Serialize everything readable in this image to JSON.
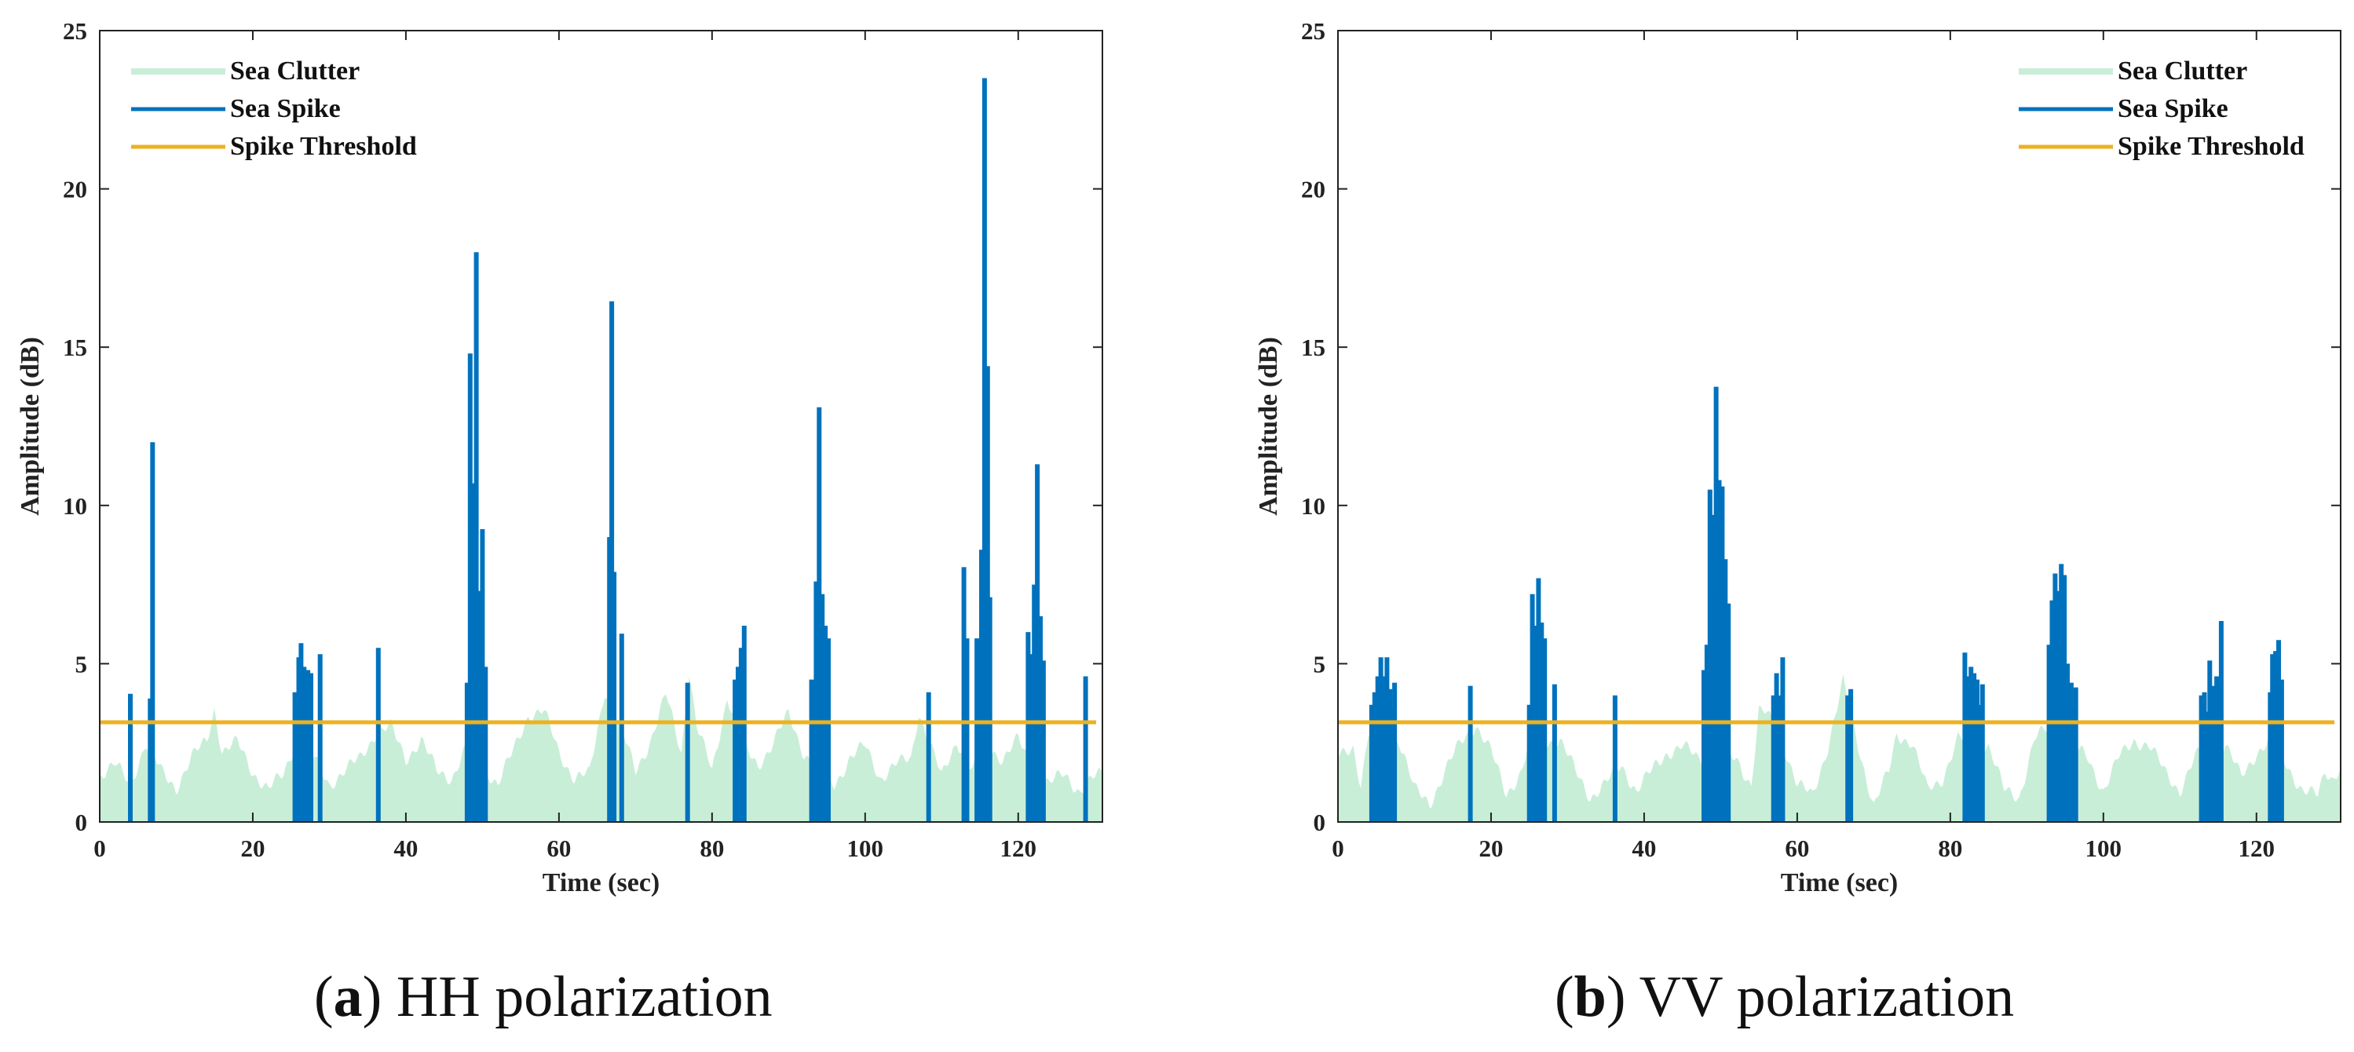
{
  "chart_data": [
    {
      "id": "panel-a",
      "type": "bar",
      "caption_letter": "a",
      "caption_text": "HH polarization",
      "xlabel": "Time (sec)",
      "ylabel": "Amplitude (dB)",
      "xlim": [
        0,
        131
      ],
      "ylim": [
        0,
        25
      ],
      "xticks": [
        0,
        20,
        40,
        60,
        80,
        100,
        120
      ],
      "yticks": [
        0,
        5,
        10,
        15,
        20,
        25
      ],
      "legend_position": "top-left",
      "legend": [
        {
          "name": "Sea Clutter",
          "color": "#c8eed8"
        },
        {
          "name": "Sea Spike",
          "color": "#0072bd"
        },
        {
          "name": "Spike Threshold",
          "color": "#edb120"
        }
      ],
      "threshold": 3.15,
      "clutter_profile": [
        [
          0,
          1.5
        ],
        [
          2,
          1.8
        ],
        [
          4,
          1.2
        ],
        [
          6,
          2.5
        ],
        [
          8,
          1.6
        ],
        [
          10,
          1.1
        ],
        [
          12,
          2.0
        ],
        [
          14,
          2.6
        ],
        [
          15,
          3.6
        ],
        [
          16,
          2.2
        ],
        [
          18,
          2.5
        ],
        [
          20,
          1.6
        ],
        [
          22,
          1.0
        ],
        [
          24,
          1.5
        ],
        [
          26,
          2.8
        ],
        [
          28,
          2.0
        ],
        [
          30,
          1.2
        ],
        [
          32,
          1.6
        ],
        [
          34,
          2.0
        ],
        [
          36,
          2.8
        ],
        [
          38,
          3.0
        ],
        [
          40,
          2.0
        ],
        [
          42,
          2.6
        ],
        [
          44,
          1.6
        ],
        [
          46,
          1.4
        ],
        [
          48,
          2.4
        ],
        [
          50,
          1.8
        ],
        [
          52,
          1.2
        ],
        [
          54,
          2.2
        ],
        [
          56,
          3.4
        ],
        [
          58,
          3.5
        ],
        [
          60,
          2.2
        ],
        [
          62,
          1.4
        ],
        [
          64,
          1.5
        ],
        [
          66,
          4.2
        ],
        [
          68,
          3.0
        ],
        [
          70,
          1.6
        ],
        [
          72,
          2.6
        ],
        [
          74,
          4.0
        ],
        [
          76,
          2.2
        ],
        [
          77,
          4.8
        ],
        [
          78,
          3.0
        ],
        [
          80,
          1.6
        ],
        [
          82,
          4.0
        ],
        [
          84,
          2.4
        ],
        [
          86,
          1.8
        ],
        [
          88,
          2.5
        ],
        [
          90,
          3.4
        ],
        [
          92,
          2.2
        ],
        [
          94,
          1.6
        ],
        [
          96,
          1.2
        ],
        [
          98,
          2.0
        ],
        [
          100,
          2.4
        ],
        [
          102,
          1.4
        ],
        [
          104,
          1.8
        ],
        [
          106,
          2.0
        ],
        [
          107,
          3.5
        ],
        [
          108,
          2.8
        ],
        [
          110,
          1.4
        ],
        [
          112,
          2.6
        ],
        [
          114,
          1.6
        ],
        [
          116,
          2.4
        ],
        [
          118,
          2.0
        ],
        [
          120,
          2.6
        ],
        [
          122,
          1.6
        ],
        [
          124,
          1.2
        ],
        [
          126,
          1.5
        ],
        [
          128,
          1.0
        ],
        [
          130,
          1.4
        ],
        [
          131,
          1.5
        ]
      ],
      "spikes": [
        [
          4.0,
          4.05
        ],
        [
          6.6,
          3.9
        ],
        [
          6.9,
          12.0
        ],
        [
          25.5,
          4.1
        ],
        [
          26.0,
          5.2
        ],
        [
          26.3,
          5.65
        ],
        [
          26.7,
          4.9
        ],
        [
          27.2,
          4.8
        ],
        [
          27.6,
          4.7
        ],
        [
          28.8,
          5.3
        ],
        [
          36.4,
          5.5
        ],
        [
          48.0,
          4.4
        ],
        [
          48.4,
          14.8
        ],
        [
          48.8,
          10.7
        ],
        [
          49.2,
          18.0
        ],
        [
          49.6,
          7.3
        ],
        [
          50.0,
          9.25
        ],
        [
          50.4,
          4.9
        ],
        [
          66.6,
          9.0
        ],
        [
          66.9,
          16.45
        ],
        [
          67.2,
          7.9
        ],
        [
          68.2,
          5.95
        ],
        [
          76.8,
          4.4
        ],
        [
          83.0,
          4.5
        ],
        [
          83.4,
          4.9
        ],
        [
          83.8,
          5.5
        ],
        [
          84.2,
          6.2
        ],
        [
          93.0,
          4.5
        ],
        [
          93.6,
          7.6
        ],
        [
          94.0,
          13.1
        ],
        [
          94.4,
          7.2
        ],
        [
          94.8,
          6.2
        ],
        [
          95.2,
          5.8
        ],
        [
          108.3,
          4.1
        ],
        [
          112.9,
          8.05
        ],
        [
          113.3,
          5.8
        ],
        [
          114.6,
          5.8
        ],
        [
          115.2,
          8.6
        ],
        [
          115.6,
          23.5
        ],
        [
          116.0,
          14.4
        ],
        [
          116.3,
          7.1
        ],
        [
          121.3,
          6.0
        ],
        [
          121.7,
          5.3
        ],
        [
          122.1,
          7.5
        ],
        [
          122.5,
          11.3
        ],
        [
          122.9,
          6.5
        ],
        [
          123.3,
          5.1
        ],
        [
          128.8,
          4.6
        ]
      ]
    },
    {
      "id": "panel-b",
      "type": "bar",
      "caption_letter": "b",
      "caption_text": "VV polarization",
      "xlabel": "Time (sec)",
      "ylabel": "Amplitude (dB)",
      "xlim": [
        0,
        131
      ],
      "ylim": [
        0,
        25
      ],
      "xticks": [
        0,
        20,
        40,
        60,
        80,
        100,
        120
      ],
      "yticks": [
        0,
        5,
        10,
        15,
        20,
        25
      ],
      "legend_position": "top-right",
      "legend": [
        {
          "name": "Sea Clutter",
          "color": "#c8eed8"
        },
        {
          "name": "Sea Spike",
          "color": "#0072bd"
        },
        {
          "name": "Spike Threshold",
          "color": "#edb120"
        }
      ],
      "threshold": 3.15,
      "clutter_profile": [
        [
          0,
          2.0
        ],
        [
          2,
          2.4
        ],
        [
          3,
          1.2
        ],
        [
          4,
          2.8
        ],
        [
          8,
          2.6
        ],
        [
          10,
          1.0
        ],
        [
          12,
          0.6
        ],
        [
          14,
          1.6
        ],
        [
          16,
          2.5
        ],
        [
          18,
          3.1
        ],
        [
          20,
          2.2
        ],
        [
          22,
          0.9
        ],
        [
          24,
          1.6
        ],
        [
          25,
          2.5
        ],
        [
          29,
          2.6
        ],
        [
          31,
          1.6
        ],
        [
          33,
          0.8
        ],
        [
          35,
          1.2
        ],
        [
          37,
          1.8
        ],
        [
          39,
          1.0
        ],
        [
          41,
          1.6
        ],
        [
          43,
          2.2
        ],
        [
          45,
          2.4
        ],
        [
          47,
          2.0
        ],
        [
          52,
          2.0
        ],
        [
          54,
          1.2
        ],
        [
          55,
          3.5
        ],
        [
          56,
          3.4
        ],
        [
          58,
          2.6
        ],
        [
          60,
          1.2
        ],
        [
          62,
          0.8
        ],
        [
          64,
          2.4
        ],
        [
          66,
          4.4
        ],
        [
          68,
          2.4
        ],
        [
          70,
          0.5
        ],
        [
          72,
          1.6
        ],
        [
          73,
          2.8
        ],
        [
          75,
          2.5
        ],
        [
          77,
          1.0
        ],
        [
          79,
          1.4
        ],
        [
          81,
          2.6
        ],
        [
          85,
          2.4
        ],
        [
          87,
          1.0
        ],
        [
          89,
          0.8
        ],
        [
          91,
          2.6
        ],
        [
          93,
          3.0
        ],
        [
          98,
          2.0
        ],
        [
          100,
          1.0
        ],
        [
          102,
          2.0
        ],
        [
          104,
          2.6
        ],
        [
          106,
          2.4
        ],
        [
          108,
          1.6
        ],
        [
          110,
          1.0
        ],
        [
          112,
          2.0
        ],
        [
          114,
          2.6
        ],
        [
          116,
          2.4
        ],
        [
          118,
          1.4
        ],
        [
          120,
          2.2
        ],
        [
          122,
          2.6
        ],
        [
          124,
          1.8
        ],
        [
          126,
          1.0
        ],
        [
          128,
          0.8
        ],
        [
          129,
          1.6
        ],
        [
          130,
          1.4
        ],
        [
          131,
          1.8
        ]
      ],
      "spikes": [
        [
          4.4,
          3.7
        ],
        [
          4.8,
          4.1
        ],
        [
          5.2,
          4.6
        ],
        [
          5.6,
          5.2
        ],
        [
          6.0,
          4.6
        ],
        [
          6.4,
          5.2
        ],
        [
          6.8,
          4.2
        ],
        [
          7.4,
          4.4
        ],
        [
          17.3,
          4.3
        ],
        [
          25.0,
          3.7
        ],
        [
          25.4,
          7.2
        ],
        [
          25.8,
          6.2
        ],
        [
          26.2,
          7.7
        ],
        [
          26.6,
          6.3
        ],
        [
          27.0,
          5.8
        ],
        [
          28.3,
          4.35
        ],
        [
          36.2,
          4.0
        ],
        [
          47.8,
          4.8
        ],
        [
          48.2,
          5.6
        ],
        [
          48.6,
          10.5
        ],
        [
          49.0,
          9.7
        ],
        [
          49.4,
          13.75
        ],
        [
          49.8,
          10.8
        ],
        [
          50.2,
          10.6
        ],
        [
          50.6,
          8.3
        ],
        [
          51.0,
          6.9
        ],
        [
          56.9,
          4.0
        ],
        [
          57.3,
          4.7
        ],
        [
          58.1,
          5.2
        ],
        [
          66.6,
          4.0
        ],
        [
          67.0,
          4.2
        ],
        [
          81.9,
          5.35
        ],
        [
          82.3,
          4.6
        ],
        [
          82.7,
          4.9
        ],
        [
          83.1,
          4.7
        ],
        [
          83.5,
          4.5
        ],
        [
          84.2,
          4.35
        ],
        [
          92.9,
          5.6
        ],
        [
          93.3,
          7.0
        ],
        [
          93.7,
          7.85
        ],
        [
          94.1,
          7.3
        ],
        [
          94.5,
          8.15
        ],
        [
          94.9,
          7.8
        ],
        [
          95.3,
          5.0
        ],
        [
          95.8,
          4.4
        ],
        [
          96.4,
          4.25
        ],
        [
          112.8,
          4.0
        ],
        [
          113.2,
          4.1
        ],
        [
          113.9,
          5.1
        ],
        [
          114.3,
          4.3
        ],
        [
          114.8,
          4.6
        ],
        [
          115.4,
          6.35
        ],
        [
          121.8,
          4.1
        ],
        [
          122.1,
          5.3
        ],
        [
          122.5,
          5.4
        ],
        [
          122.9,
          5.75
        ],
        [
          123.3,
          4.5
        ]
      ]
    }
  ]
}
